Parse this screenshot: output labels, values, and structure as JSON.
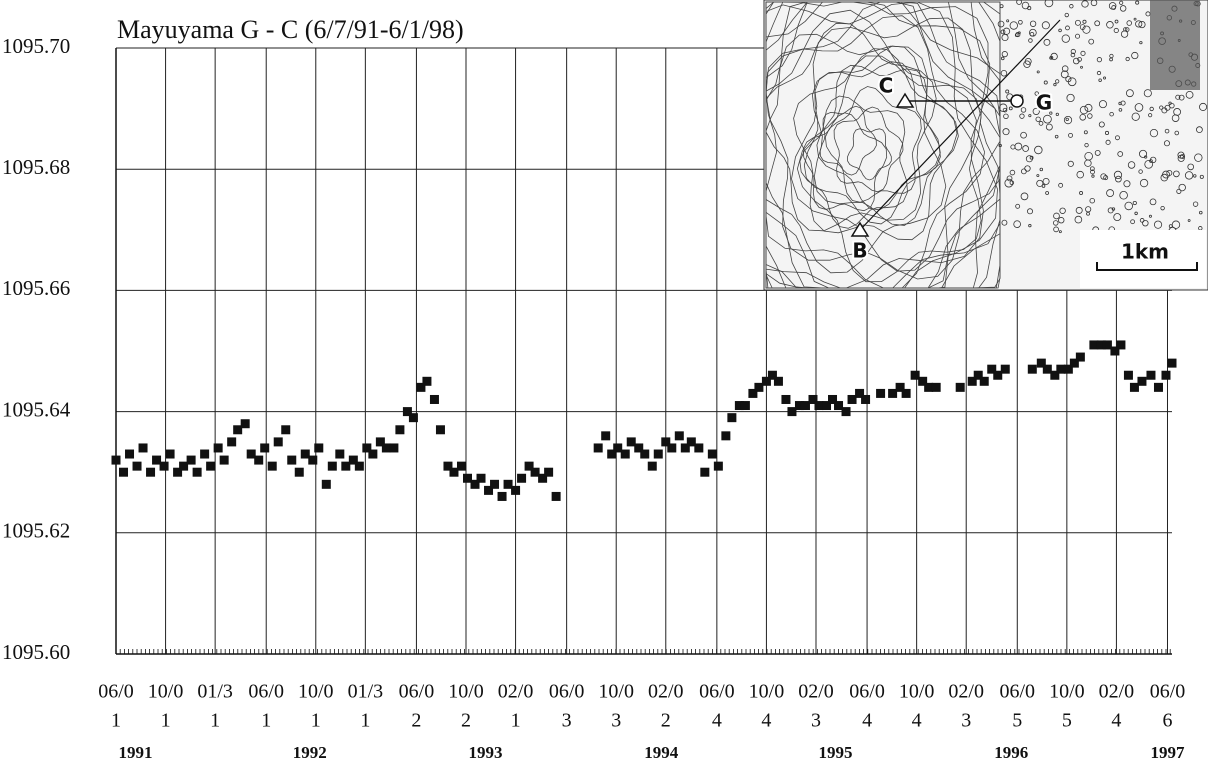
{
  "chart_data": {
    "type": "scatter",
    "title": "Mayuyama G - C (6/7/91-6/1/98)",
    "x": [
      1991.42,
      1991.47,
      1991.51,
      1991.56,
      1991.6,
      1991.65,
      1991.69,
      1991.74,
      1991.78,
      1991.83,
      1991.87,
      1991.92,
      1991.96,
      1992.01,
      1992.05,
      1992.1,
      1992.14,
      1992.19,
      1992.23,
      1992.28,
      1992.32,
      1992.37,
      1992.41,
      1992.46,
      1992.5,
      1992.55,
      1992.59,
      1992.64,
      1992.68,
      1992.73,
      1992.77,
      1992.82,
      1992.86,
      1992.91,
      1992.95,
      1993.0,
      1993.04,
      1993.09,
      1993.13,
      1993.18,
      1993.22,
      1993.27,
      1993.31,
      1993.36,
      1993.4,
      1993.45,
      1993.49,
      1993.54,
      1993.58,
      1993.63,
      1993.67,
      1993.72,
      1993.76,
      1993.81,
      1993.85,
      1993.9,
      1993.94,
      1993.99,
      1994.03,
      1994.08,
      1994.12,
      1994.17,
      1994.21,
      1994.26,
      1994.3,
      1994.35,
      1994.63,
      1994.68,
      1994.72,
      1994.76,
      1994.81,
      1994.85,
      1994.9,
      1994.94,
      1994.99,
      1995.03,
      1995.08,
      1995.12,
      1995.17,
      1995.21,
      1995.25,
      1995.3,
      1995.34,
      1995.39,
      1995.43,
      1995.48,
      1995.52,
      1995.57,
      1995.61,
      1995.66,
      1995.7,
      1995.75,
      1995.79,
      1995.83,
      1995.88,
      1995.92,
      1995.97,
      1996.01,
      1996.06,
      1996.1,
      1996.15,
      1996.19,
      1996.23,
      1996.28,
      1996.32,
      1996.37,
      1996.41,
      1996.51,
      1996.59,
      1996.64,
      1996.68,
      1996.74,
      1996.79,
      1996.83,
      1996.88,
      1997.04,
      1997.12,
      1997.16,
      1997.2,
      1997.25,
      1997.29,
      1997.34,
      1997.52,
      1997.58,
      1997.62,
      1997.67,
      1997.71,
      1997.76,
      1997.8,
      1997.84,
      1997.93,
      1997.98,
      1998.02,
      1998.07,
      1998.11,
      1998.16,
      1998.2,
      1998.25,
      1998.31,
      1998.36,
      1998.41,
      1998.45
    ],
    "values": [
      1095.632,
      1095.63,
      1095.633,
      1095.631,
      1095.634,
      1095.63,
      1095.632,
      1095.631,
      1095.633,
      1095.63,
      1095.631,
      1095.632,
      1095.63,
      1095.633,
      1095.631,
      1095.634,
      1095.632,
      1095.635,
      1095.637,
      1095.638,
      1095.633,
      1095.632,
      1095.634,
      1095.631,
      1095.635,
      1095.637,
      1095.632,
      1095.63,
      1095.633,
      1095.632,
      1095.634,
      1095.628,
      1095.631,
      1095.633,
      1095.631,
      1095.632,
      1095.631,
      1095.634,
      1095.633,
      1095.635,
      1095.634,
      1095.634,
      1095.637,
      1095.64,
      1095.639,
      1095.644,
      1095.645,
      1095.642,
      1095.637,
      1095.631,
      1095.63,
      1095.631,
      1095.629,
      1095.628,
      1095.629,
      1095.627,
      1095.628,
      1095.626,
      1095.628,
      1095.627,
      1095.629,
      1095.631,
      1095.63,
      1095.629,
      1095.63,
      1095.626,
      1095.634,
      1095.636,
      1095.633,
      1095.634,
      1095.633,
      1095.635,
      1095.634,
      1095.633,
      1095.631,
      1095.633,
      1095.635,
      1095.634,
      1095.636,
      1095.634,
      1095.635,
      1095.634,
      1095.63,
      1095.633,
      1095.631,
      1095.636,
      1095.639,
      1095.641,
      1095.641,
      1095.643,
      1095.644,
      1095.645,
      1095.646,
      1095.645,
      1095.642,
      1095.64,
      1095.641,
      1095.641,
      1095.642,
      1095.641,
      1095.641,
      1095.642,
      1095.641,
      1095.64,
      1095.642,
      1095.643,
      1095.642,
      1095.643,
      1095.643,
      1095.644,
      1095.643,
      1095.646,
      1095.645,
      1095.644,
      1095.644,
      1095.644,
      1095.645,
      1095.646,
      1095.645,
      1095.647,
      1095.646,
      1095.647,
      1095.647,
      1095.648,
      1095.647,
      1095.646,
      1095.647,
      1095.647,
      1095.648,
      1095.649,
      1095.651,
      1095.651,
      1095.651,
      1095.65,
      1095.651,
      1095.646,
      1095.644,
      1095.645,
      1095.646,
      1095.644,
      1095.646,
      1095.648
    ],
    "color": "#111111",
    "xlim": [
      1991.42,
      1998.45
    ],
    "xticks": [
      {
        "value": 1991.42,
        "label": "06/0"
      },
      {
        "value": 1991.75,
        "label": "10/0"
      },
      {
        "value": 1992.08,
        "label": "01/3"
      },
      {
        "value": 1992.42,
        "label": "06/0"
      },
      {
        "value": 1992.75,
        "label": "10/0"
      },
      {
        "value": 1993.08,
        "label": "01/3"
      },
      {
        "value": 1993.42,
        "label": "06/0"
      },
      {
        "value": 1993.75,
        "label": "10/0"
      },
      {
        "value": 1994.08,
        "label": "02/0"
      },
      {
        "value": 1994.42,
        "label": "06/0"
      },
      {
        "value": 1994.75,
        "label": "10/0"
      },
      {
        "value": 1995.08,
        "label": "02/0"
      },
      {
        "value": 1995.42,
        "label": "06/0"
      },
      {
        "value": 1995.75,
        "label": "10/0"
      },
      {
        "value": 1996.08,
        "label": "02/0"
      },
      {
        "value": 1996.42,
        "label": "06/0"
      },
      {
        "value": 1996.75,
        "label": "10/0"
      },
      {
        "value": 1997.08,
        "label": "02/0"
      },
      {
        "value": 1997.42,
        "label": "06/0"
      },
      {
        "value": 1997.75,
        "label": "10/0"
      },
      {
        "value": 1998.08,
        "label": "02/0"
      },
      {
        "value": 1998.42,
        "label": "06/0"
      }
    ],
    "x_sublabels": [
      "1",
      "1",
      "1",
      "1",
      "1",
      "1",
      "2",
      "2",
      "1",
      "3",
      "3",
      "2",
      "4",
      "4",
      "3",
      "4",
      "4",
      "3",
      "5",
      "5",
      "4",
      "6"
    ],
    "year_labels": [
      {
        "value": 1991.55,
        "label": "1991"
      },
      {
        "value": 1992.71,
        "label": "1992"
      },
      {
        "value": 1993.88,
        "label": "1993"
      },
      {
        "value": 1995.05,
        "label": "1994"
      },
      {
        "value": 1996.21,
        "label": "1995"
      },
      {
        "value": 1997.38,
        "label": "1996"
      },
      {
        "value": 1998.42,
        "label": "1997"
      }
    ],
    "ylim": [
      1095.6,
      1095.7
    ],
    "yticks": [
      {
        "value": 1095.6,
        "label": "1095.60"
      },
      1095.62,
      1095.64,
      1095.66,
      1095.68,
      {
        "value": 1095.7,
        "label": "1095.70"
      }
    ],
    "grid": true
  },
  "inset_map": {
    "labels": [
      "C",
      "G",
      "B"
    ],
    "scale": "1km"
  }
}
